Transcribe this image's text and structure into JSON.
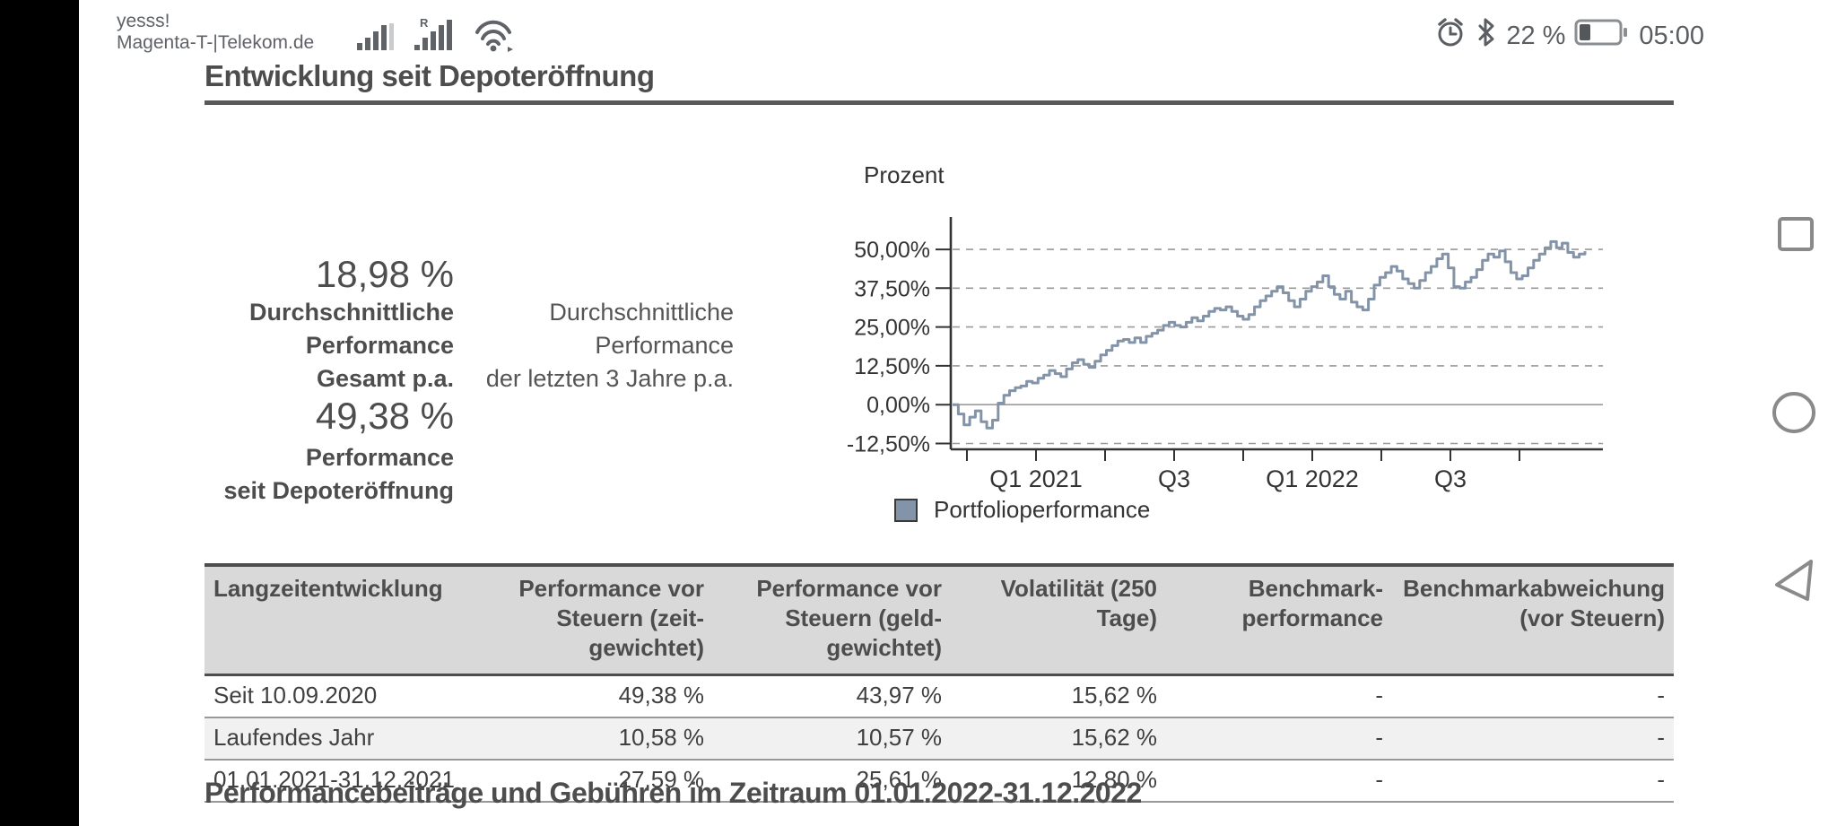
{
  "status_bar": {
    "carrier_lines": [
      "yesss!",
      "Magenta-T-|Telekom.de"
    ],
    "battery_percent_text": "22 %",
    "battery_level": 0.22,
    "time": "05:00",
    "icons": [
      "signal-strength-icon",
      "signal-strength-roaming-icon",
      "wifi-icon",
      "alarm-icon",
      "bluetooth-icon",
      "battery-icon"
    ]
  },
  "page": {
    "section1_title": "Entwicklung seit Depoteröffnung",
    "section2_title": "Performancebeiträge und Gebühren im Zeitraum 01.01.2022-31.12.2022"
  },
  "summary": {
    "stat1": {
      "value": "18,98 %",
      "label_lines": [
        "Durchschnittliche",
        "Performance",
        "Gesamt p.a."
      ],
      "sublabel_lines": [
        "Durchschnittliche",
        "Performance",
        "der letzten 3 Jahre p.a."
      ]
    },
    "stat2": {
      "value": "49,38 %",
      "label_lines": [
        "Performance",
        "seit Depoteröffnung"
      ]
    }
  },
  "chart_data": {
    "type": "line",
    "title": "Prozent",
    "line_style": "step",
    "line_color": "#8494a8",
    "grid": true,
    "x_range": [
      "10.09.2020",
      "31.12.2022"
    ],
    "y_axis": {
      "ticks": [
        {
          "label": "50,00%",
          "value": 50
        },
        {
          "label": "37,50%",
          "value": 37.5
        },
        {
          "label": "25,00%",
          "value": 25
        },
        {
          "label": "12,50%",
          "value": 12.5
        },
        {
          "label": "0,00%",
          "value": 0
        },
        {
          "label": "-12,50%",
          "value": -12.5
        }
      ],
      "ylim": [
        -17,
        58
      ]
    },
    "x_axis": {
      "tick_count": 9,
      "labels": [
        "Q1 2021",
        "Q3",
        "Q1 2022",
        "Q3"
      ],
      "label_tick_indexes": [
        1,
        3,
        5,
        7
      ]
    },
    "legend": {
      "position": "bottom",
      "swatch_color": "#8494a8",
      "label": "Portfolioperformance"
    },
    "series": [
      {
        "name": "Portfolioperformance",
        "unit": "%",
        "values": [
          0,
          -3,
          -6.5,
          -4,
          -2,
          -5.5,
          -7.5,
          -5,
          0.5,
          3,
          4.5,
          5.5,
          6,
          7.5,
          7,
          8.5,
          9.5,
          11,
          10,
          9,
          11.5,
          13.5,
          14.5,
          13,
          12,
          14,
          16,
          17.5,
          19,
          20.5,
          21,
          20,
          21.5,
          20,
          22,
          23,
          24,
          25.5,
          26.5,
          25.5,
          25,
          26.5,
          28,
          27,
          28.5,
          30,
          31,
          30.5,
          31.5,
          30,
          28.5,
          27.5,
          29,
          31.5,
          33.5,
          35,
          36.5,
          38,
          36,
          33.5,
          31.5,
          34,
          36.5,
          38,
          39.5,
          41.5,
          38,
          35.5,
          34,
          36.5,
          33,
          31.5,
          30.5,
          34,
          38.5,
          41,
          42.5,
          44.5,
          43,
          40.5,
          39,
          37.5,
          40,
          42.5,
          44.5,
          47,
          48.5,
          44,
          38,
          37.5,
          39.5,
          41,
          43.5,
          46.5,
          48.5,
          47.5,
          49.5,
          46,
          42.5,
          40.5,
          41.5,
          44,
          46.5,
          48.5,
          50.5,
          52.5,
          50.5,
          52,
          49,
          47.5,
          48.5,
          49.4
        ]
      }
    ]
  },
  "table": {
    "headers": [
      {
        "text": "Langzeitentwicklung",
        "align": "left"
      },
      {
        "text": "Performance vor\nSteuern (zeit-\ngewichtet)",
        "align": "right"
      },
      {
        "text": "Performance vor\nSteuern (geld-\ngewichtet)",
        "align": "right"
      },
      {
        "text": "Volatilität (250 Tage)",
        "align": "right"
      },
      {
        "text": "Benchmark-\nperformance",
        "align": "right"
      },
      {
        "text": "Benchmarkabweichung\n(vor Steuern)",
        "align": "right"
      }
    ],
    "rows": [
      {
        "cells": [
          "Seit 10.09.2020",
          "49,38 %",
          "43,97 %",
          "15,62 %",
          "-",
          "-"
        ]
      },
      {
        "cells": [
          "Laufendes Jahr",
          "10,58 %",
          "10,57 %",
          "15,62 %",
          "-",
          "-"
        ]
      },
      {
        "cells": [
          "01.01.2021-31.12.2021",
          "27,59 %",
          "25,61 %",
          "12,80 %",
          "-",
          "-"
        ]
      }
    ]
  },
  "nav": {
    "buttons": [
      "recents",
      "home",
      "back"
    ]
  },
  "colors": {
    "accent_line": "#8494a8",
    "heading_text": "#4d4d4d",
    "table_header_bg": "#d9d9d9",
    "status_text": "#5f6368",
    "nav_icon": "#8a8a8a"
  }
}
